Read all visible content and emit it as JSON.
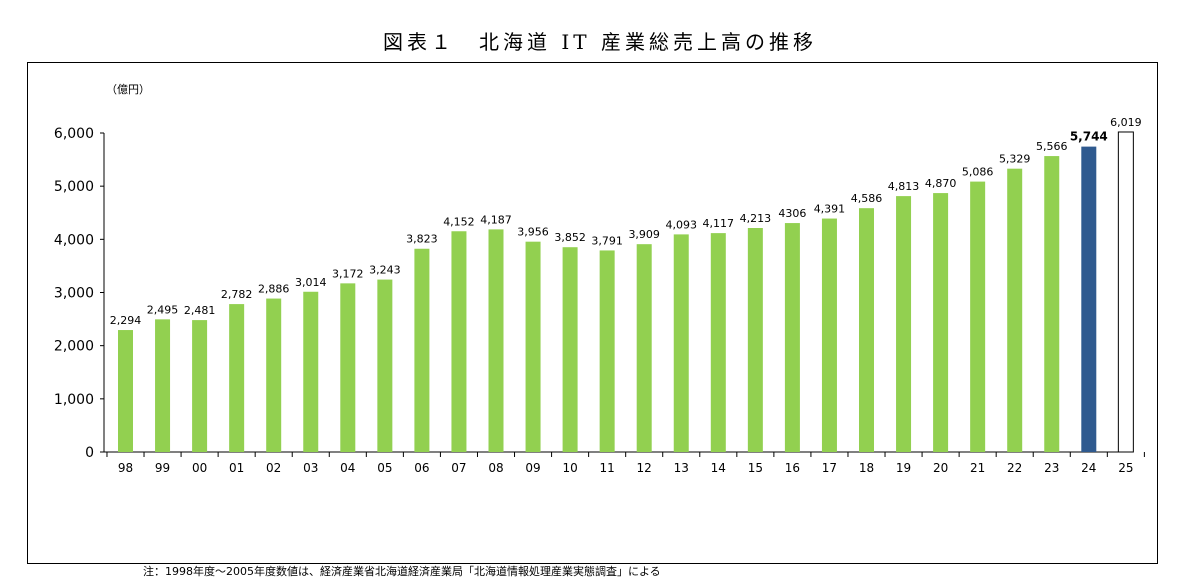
{
  "title": "図表１　北海道 IT 産業総売上高の推移",
  "note": "注：1998年度〜2005年度数値は、経済産業省北海道経済産業局「北海道情報処理産業実態調査」による",
  "colors": {
    "bar_default": "#92d050",
    "bar_highlight": "#2f5a8f",
    "bar_projection_fill": "#ffffff",
    "bar_projection_stroke": "#000000"
  },
  "chart_data": {
    "type": "bar",
    "ylabel": "（億円）",
    "ylim": [
      0,
      6000
    ],
    "yticks": [
      "0",
      "1,000",
      "2,000",
      "3,000",
      "4,000",
      "5,000",
      "6,000"
    ],
    "ytick_values": [
      0,
      1000,
      2000,
      3000,
      4000,
      5000,
      6000
    ],
    "categories": [
      "98",
      "99",
      "00",
      "01",
      "02",
      "03",
      "04",
      "05",
      "06",
      "07",
      "08",
      "09",
      "10",
      "11",
      "12",
      "13",
      "14",
      "15",
      "16",
      "17",
      "18",
      "19",
      "20",
      "21",
      "22",
      "23",
      "24",
      "25"
    ],
    "values": [
      2294,
      2495,
      2481,
      2782,
      2886,
      3014,
      3172,
      3243,
      3823,
      4152,
      4187,
      3956,
      3852,
      3791,
      3909,
      4093,
      4117,
      4213,
      4306,
      4391,
      4586,
      4813,
      4870,
      5086,
      5329,
      5566,
      5744,
      6019
    ],
    "labels": [
      "2,294",
      "2,495",
      "2,481",
      "2,782",
      "2,886",
      "3,014",
      "3,172",
      "3,243",
      "3,823",
      "4,152",
      "4,187",
      "3,956",
      "3,852",
      "3,791",
      "3,909",
      "4,093",
      "4,117",
      "4,213",
      "4306",
      "4,391",
      "4,586",
      "4,813",
      "4,870",
      "5,086",
      "5,329",
      "5,566",
      "5,744",
      "6,019"
    ],
    "highlight_category": "24",
    "projection_category": "25",
    "grid": false
  }
}
